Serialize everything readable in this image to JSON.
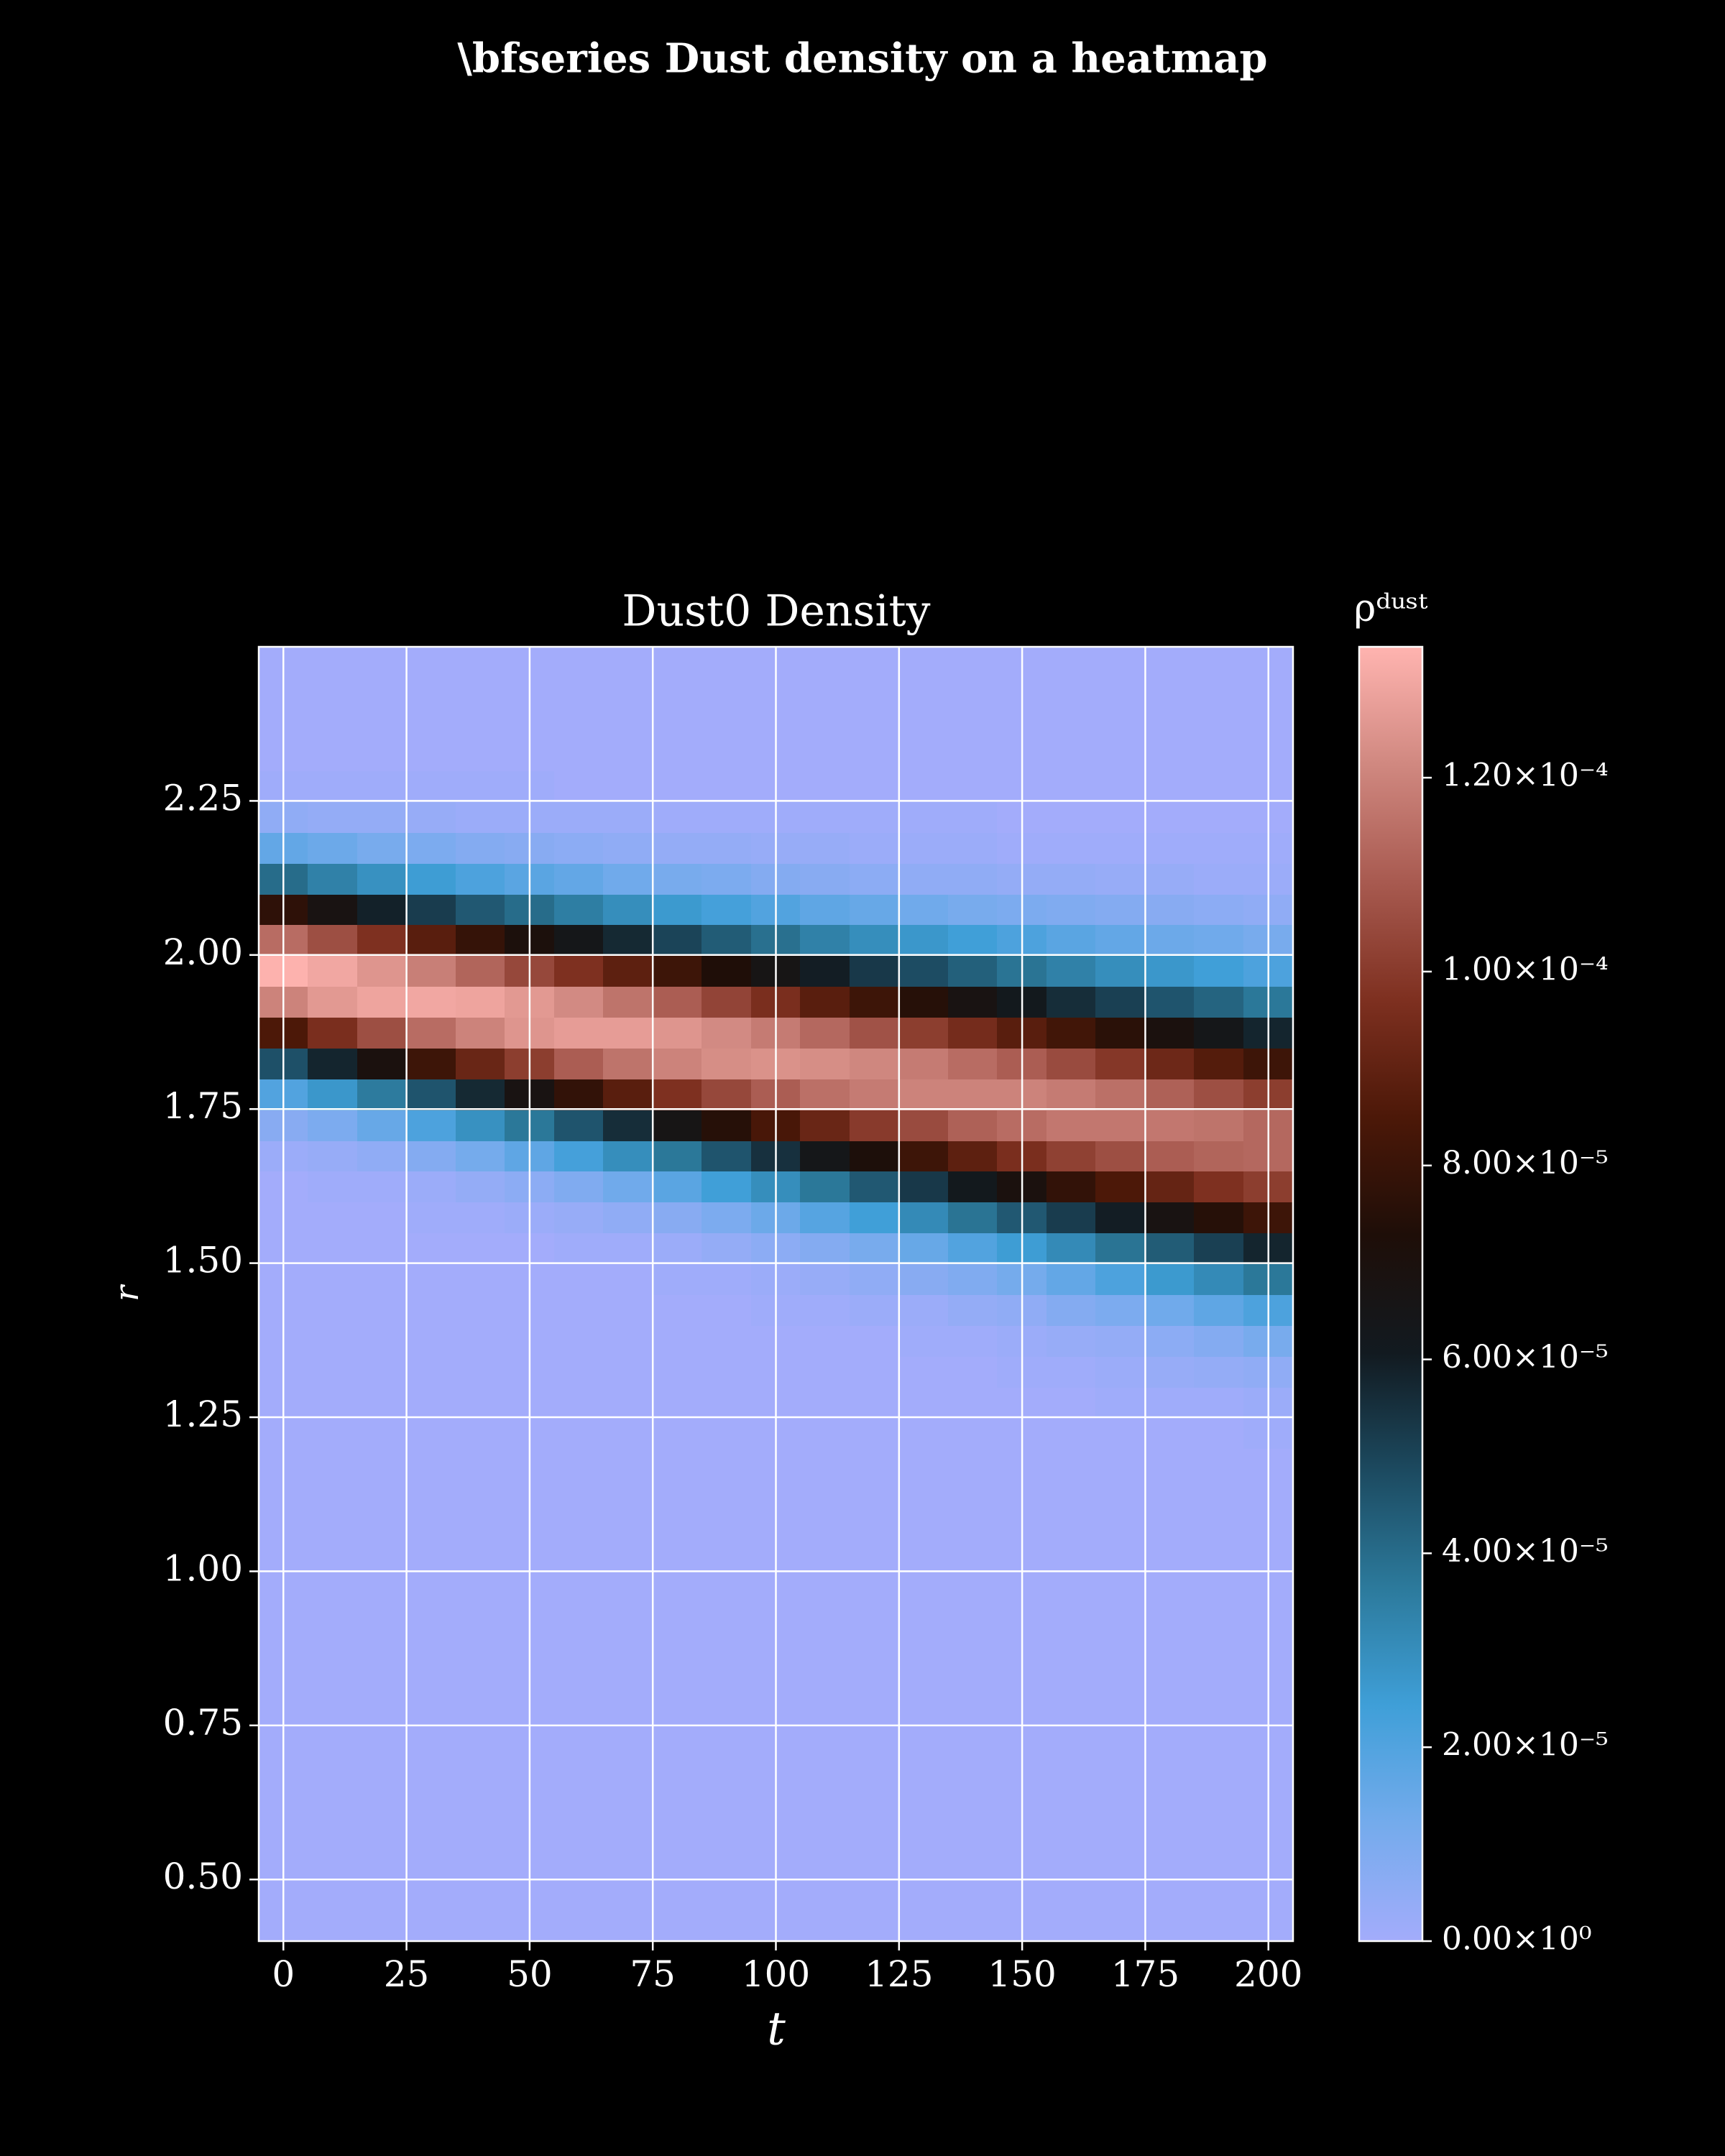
{
  "chart_data": {
    "type": "heatmap",
    "title": "\\bfseries Dust density on a heatmap",
    "axes_title": "Dust0 Density",
    "xlabel": "t",
    "ylabel": "r",
    "colorbar_label": "ρᵈᵘˢᵗ",
    "x": [
      0,
      10,
      20,
      30,
      40,
      50,
      60,
      70,
      80,
      90,
      100,
      110,
      120,
      130,
      140,
      150,
      160,
      170,
      180,
      190,
      200
    ],
    "y": [
      0.425,
      0.475,
      0.525,
      0.575,
      0.625,
      0.675,
      0.725,
      0.775,
      0.825,
      0.875,
      0.925,
      0.975,
      1.025,
      1.075,
      1.125,
      1.175,
      1.225,
      1.275,
      1.325,
      1.375,
      1.425,
      1.475,
      1.525,
      1.575,
      1.625,
      1.675,
      1.725,
      1.775,
      1.825,
      1.875,
      1.925,
      1.975,
      2.025,
      2.075,
      2.125,
      2.175,
      2.225,
      2.275,
      2.325,
      2.375,
      2.425,
      2.475
    ],
    "values": [
      [
        0,
        0,
        0,
        0,
        0,
        0,
        0,
        0,
        0,
        0,
        0,
        0,
        0,
        0,
        0,
        0,
        0,
        0,
        0,
        0,
        0,
        0,
        0,
        0,
        0,
        2e-06,
        7e-06,
        2e-05,
        4.7e-05,
        8.5e-05,
        0.00012,
        0.000133,
        0.000114,
        7.7e-05,
        4e-05,
        1.6e-05,
        5e-06,
        1e-06,
        0,
        0,
        0,
        0
      ],
      [
        0,
        0,
        0,
        0,
        0,
        0,
        0,
        0,
        0,
        0,
        0,
        0,
        0,
        0,
        0,
        0,
        0,
        0,
        0,
        0,
        0,
        0,
        0,
        0,
        1e-06,
        3e-06,
        1e-05,
        2.7e-05,
        5.8e-05,
        9.6e-05,
        0.000126,
        0.00013,
        0.000106,
        6.8e-05,
        3.4e-05,
        1.4e-05,
        4e-06,
        1e-06,
        0,
        0,
        0,
        0
      ],
      [
        0,
        0,
        0,
        0,
        0,
        0,
        0,
        0,
        0,
        0,
        0,
        0,
        0,
        0,
        0,
        0,
        0,
        0,
        0,
        0,
        0,
        0,
        0,
        0,
        1e-06,
        5e-06,
        1.5e-05,
        3.6e-05,
        7e-05,
        0.000106,
        0.000129,
        0.000125,
        9.7e-05,
        5.9e-05,
        2.9e-05,
        1.1e-05,
        4e-06,
        1e-06,
        0,
        0,
        0,
        0
      ],
      [
        0,
        0,
        0,
        0,
        0,
        0,
        0,
        0,
        0,
        0,
        0,
        0,
        0,
        0,
        0,
        0,
        0,
        0,
        0,
        0,
        0,
        0,
        0,
        1e-06,
        2e-06,
        8e-06,
        2.1e-05,
        4.6e-05,
        8.1e-05,
        0.000114,
        0.00013,
        0.000119,
        8.8e-05,
        5.2e-05,
        2.5e-05,
        1e-05,
        3e-06,
        1e-06,
        0,
        0,
        0,
        0
      ],
      [
        0,
        0,
        0,
        0,
        0,
        0,
        0,
        0,
        0,
        0,
        0,
        0,
        0,
        0,
        0,
        0,
        0,
        0,
        0,
        0,
        0,
        0,
        0,
        1e-06,
        4e-06,
        1.2e-05,
        2.9e-05,
        5.7e-05,
        9.2e-05,
        0.00012,
        0.000129,
        0.000112,
        7.9e-05,
        4.5e-05,
        2.1e-05,
        8e-06,
        2e-06,
        1e-06,
        0,
        0,
        0,
        0
      ],
      [
        0,
        0,
        0,
        0,
        0,
        0,
        0,
        0,
        0,
        0,
        0,
        0,
        0,
        0,
        0,
        0,
        0,
        0,
        0,
        0,
        0,
        0,
        0,
        2e-06,
        6e-06,
        1.7e-05,
        3.7e-05,
        6.8e-05,
        0.000101,
        0.000125,
        0.000126,
        0.000104,
        7.1e-05,
        4e-05,
        1.8e-05,
        7e-06,
        2e-06,
        1e-06,
        0,
        0,
        0,
        0
      ],
      [
        0,
        0,
        0,
        0,
        0,
        0,
        0,
        0,
        0,
        0,
        0,
        0,
        0,
        0,
        0,
        0,
        0,
        0,
        0,
        0,
        0,
        0,
        1e-06,
        3e-06,
        9e-06,
        2.3e-05,
        4.6e-05,
        7.8e-05,
        0.00011,
        0.000127,
        0.000122,
        9.7e-05,
        6.4e-05,
        3.5e-05,
        1.6e-05,
        6e-06,
        2e-06,
        0,
        0,
        0,
        0,
        0
      ],
      [
        0,
        0,
        0,
        0,
        0,
        0,
        0,
        0,
        0,
        0,
        0,
        0,
        0,
        0,
        0,
        0,
        0,
        0,
        0,
        0,
        0,
        0,
        1e-06,
        5e-06,
        1.3e-05,
        3e-05,
        5.6e-05,
        8.8e-05,
        0.000116,
        0.000127,
        0.000116,
        8.9e-05,
        5.7e-05,
        3e-05,
        1.3e-05,
        5e-06,
        2e-06,
        0,
        0,
        0,
        0,
        0
      ],
      [
        0,
        0,
        0,
        0,
        0,
        0,
        0,
        0,
        0,
        0,
        0,
        0,
        0,
        0,
        0,
        0,
        0,
        0,
        0,
        0,
        0,
        1e-06,
        2e-06,
        7e-06,
        1.8e-05,
        3.7e-05,
        6.6e-05,
        9.7e-05,
        0.00012,
        0.000125,
        0.00011,
        8.1e-05,
        5e-05,
        2.6e-05,
        1.1e-05,
        4e-06,
        1e-06,
        0,
        0,
        0,
        0,
        0
      ],
      [
        0,
        0,
        0,
        0,
        0,
        0,
        0,
        0,
        0,
        0,
        0,
        0,
        0,
        0,
        0,
        0,
        0,
        0,
        0,
        0,
        0,
        1e-06,
        4e-06,
        1e-05,
        2.4e-05,
        4.6e-05,
        7.5e-05,
        0.000104,
        0.000123,
        0.000122,
        0.000103,
        7.3e-05,
        4.4e-05,
        2.3e-05,
        1e-05,
        4e-06,
        1e-06,
        0,
        0,
        0,
        0,
        0
      ],
      [
        0,
        0,
        0,
        0,
        0,
        0,
        0,
        0,
        0,
        0,
        0,
        0,
        0,
        0,
        0,
        0,
        0,
        0,
        0,
        0,
        1e-06,
        2e-06,
        6e-06,
        1.4e-05,
        3e-05,
        5.5e-05,
        8.4e-05,
        0.00011,
        0.000124,
        0.000118,
        9.6e-05,
        6.6e-05,
        3.9e-05,
        2e-05,
        8e-06,
        3e-06,
        1e-06,
        0,
        0,
        0,
        0,
        0
      ],
      [
        0,
        0,
        0,
        0,
        0,
        0,
        0,
        0,
        0,
        0,
        0,
        0,
        0,
        0,
        0,
        0,
        0,
        0,
        0,
        0,
        1e-06,
        3e-06,
        8e-06,
        1.9e-05,
        3.7e-05,
        6.4e-05,
        9.2e-05,
        0.000115,
        0.000123,
        0.000113,
        8.8e-05,
        6e-05,
        3.4e-05,
        1.7e-05,
        7e-06,
        3e-06,
        1e-06,
        0,
        0,
        0,
        0,
        0
      ],
      [
        0,
        0,
        0,
        0,
        0,
        0,
        0,
        0,
        0,
        0,
        0,
        0,
        0,
        0,
        0,
        0,
        0,
        0,
        0,
        0,
        2e-06,
        5e-06,
        1.1e-05,
        2.4e-05,
        4.5e-05,
        7.2e-05,
        0.0001,
        0.000118,
        0.000121,
        0.000107,
        8.1e-05,
        5.3e-05,
        3e-05,
        1.5e-05,
        6e-06,
        2e-06,
        1e-06,
        0,
        0,
        0,
        0,
        0
      ],
      [
        0,
        0,
        0,
        0,
        0,
        0,
        0,
        0,
        0,
        0,
        0,
        0,
        0,
        0,
        0,
        0,
        0,
        0,
        0,
        1e-06,
        2e-06,
        7e-06,
        1.5e-05,
        3.1e-05,
        5.3e-05,
        8.1e-05,
        0.000105,
        0.00012,
        0.000118,
        0.000101,
        7.5e-05,
        4.8e-05,
        2.7e-05,
        1.3e-05,
        5e-06,
        2e-06,
        1e-06,
        0,
        0,
        0,
        0,
        0
      ],
      [
        0,
        0,
        0,
        0,
        0,
        0,
        0,
        0,
        0,
        0,
        0,
        0,
        0,
        0,
        0,
        0,
        0,
        0,
        0,
        1e-06,
        4e-06,
        9e-06,
        2e-05,
        3.8e-05,
        6.2e-05,
        8.9e-05,
        0.000111,
        0.00012,
        0.000114,
        9.5e-05,
        6.8e-05,
        4.3e-05,
        2.4e-05,
        1.1e-05,
        5e-06,
        2e-06,
        1e-06,
        0,
        0,
        0,
        0,
        0
      ],
      [
        0,
        0,
        0,
        0,
        0,
        0,
        0,
        0,
        0,
        0,
        0,
        0,
        0,
        0,
        0,
        0,
        0,
        0,
        1e-06,
        2e-06,
        5e-06,
        1.2e-05,
        2.5e-05,
        4.5e-05,
        7e-05,
        9.6e-05,
        0.000114,
        0.00012,
        0.00011,
        8.8e-05,
        6.2e-05,
        3.8e-05,
        2.1e-05,
        1e-05,
        4e-06,
        1e-06,
        0,
        0,
        0,
        0,
        0,
        0
      ],
      [
        0,
        0,
        0,
        0,
        0,
        0,
        0,
        0,
        0,
        0,
        0,
        0,
        0,
        0,
        0,
        0,
        0,
        0,
        1e-06,
        3e-06,
        8e-06,
        1.6e-05,
        3.1e-05,
        5.2e-05,
        7.8e-05,
        0.000102,
        0.000117,
        0.000118,
        0.000105,
        8.2e-05,
        5.6e-05,
        3.4e-05,
        1.8e-05,
        9e-06,
        4e-06,
        1e-06,
        0,
        0,
        0,
        0,
        0,
        0
      ],
      [
        0,
        0,
        0,
        0,
        0,
        0,
        0,
        0,
        0,
        0,
        0,
        0,
        0,
        0,
        0,
        0,
        0,
        1e-06,
        2e-06,
        4e-06,
        1e-05,
        2.1e-05,
        3.8e-05,
        6e-05,
        8.5e-05,
        0.000106,
        0.000117,
        0.000115,
        9.9e-05,
        7.6e-05,
        5.1e-05,
        3e-05,
        1.6e-05,
        8e-06,
        3e-06,
        1e-06,
        0,
        0,
        0,
        0,
        0,
        0
      ],
      [
        0,
        0,
        0,
        0,
        0,
        0,
        0,
        0,
        0,
        0,
        0,
        0,
        0,
        0,
        0,
        0,
        0,
        1e-06,
        3e-06,
        6e-06,
        1.3e-05,
        2.6e-05,
        4.4e-05,
        6.8e-05,
        9.1e-05,
        0.00011,
        0.000117,
        0.000111,
        9.3e-05,
        7e-05,
        4.6e-05,
        2.7e-05,
        1.4e-05,
        7e-06,
        3e-06,
        1e-06,
        0,
        0,
        0,
        0,
        0,
        0
      ],
      [
        0,
        0,
        0,
        0,
        0,
        0,
        0,
        0,
        0,
        0,
        0,
        0,
        0,
        0,
        0,
        0,
        0,
        1e-06,
        4e-06,
        8e-06,
        1.7e-05,
        3.1e-05,
        5.1e-05,
        7.5e-05,
        9.7e-05,
        0.000112,
        0.000116,
        0.000106,
        8.7e-05,
        6.4e-05,
        4.2e-05,
        2.4e-05,
        1.3e-05,
        6e-06,
        2e-06,
        1e-06,
        0,
        0,
        0,
        0,
        0,
        0
      ],
      [
        0,
        0,
        0,
        0,
        0,
        0,
        0,
        0,
        0,
        0,
        0,
        0,
        0,
        0,
        0,
        0,
        1e-06,
        2e-06,
        5e-06,
        1.1e-05,
        2.1e-05,
        3.7e-05,
        5.8e-05,
        8.1e-05,
        0.000101,
        0.000113,
        0.000113,
        0.000101,
        8.1e-05,
        5.8e-05,
        3.7e-05,
        2.1e-05,
        1.1e-05,
        5e-06,
        2e-06,
        1e-06,
        0,
        0,
        0,
        0,
        0,
        0
      ]
    ],
    "xlim": [
      -5,
      205
    ],
    "ylim": [
      0.4,
      2.5
    ],
    "xticks": [
      0,
      25,
      50,
      75,
      100,
      125,
      150,
      175,
      200
    ],
    "yticks": [
      {
        "value": 0.5,
        "label": "0.50"
      },
      0.75,
      {
        "value": 1,
        "label": "1.00"
      },
      1.25,
      {
        "value": 1.5,
        "label": "1.50"
      },
      1.75,
      {
        "value": 2,
        "label": "2.00"
      },
      2.25
    ],
    "clim": [
      0,
      0.0001335
    ],
    "cticks": [
      {
        "value": 0,
        "label": "0.00×10⁰"
      },
      {
        "value": 2e-05,
        "label": "2.00×10⁻⁵"
      },
      {
        "value": 4e-05,
        "label": "4.00×10⁻⁵"
      },
      {
        "value": 6e-05,
        "label": "6.00×10⁻⁵"
      },
      {
        "value": 8e-05,
        "label": "8.00×10⁻⁵"
      },
      {
        "value": 0.0001,
        "label": "1.00×10⁻⁴"
      },
      {
        "value": 0.00012,
        "label": "1.20×10⁻⁴"
      }
    ],
    "colormap": [
      "#a3acfb",
      "#74abec",
      "#3f9fd8",
      "#2c7a9c",
      "#1c4a60",
      "#121a20",
      "#1e0e08",
      "#4c1808",
      "#7e3020",
      "#a85a50",
      "#d08880",
      "#ffb4b0"
    ],
    "grid": true
  }
}
